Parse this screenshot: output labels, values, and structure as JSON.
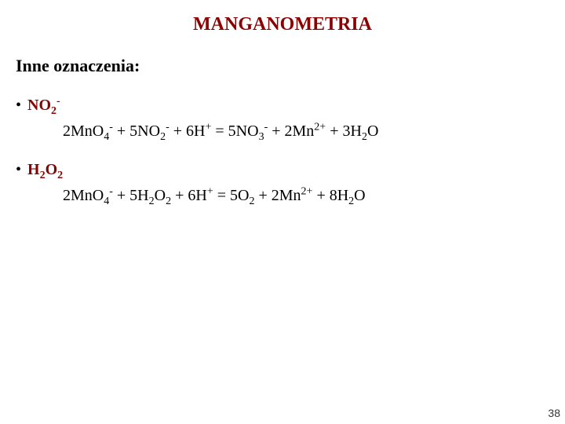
{
  "title": {
    "text": "MANGANOMETRIA",
    "color": "#8B0000",
    "fontsize": 24
  },
  "subtitle": {
    "text": "Inne oznaczenia:",
    "fontsize": 22
  },
  "items": [
    {
      "label_html": "NO<sub>2</sub><sup>-</sup>",
      "color": "#8B0000",
      "equation_html": "2MnO<sub>4</sub><sup>-</sup> + 5NO<sub>2</sub><sup>-</sup> + 6H<sup>+</sup> = 5NO<sub>3</sub><sup>-</sup> + 2Mn<sup>2+</sup> + 3H<sub>2</sub>O"
    },
    {
      "label_html": "H<sub>2</sub>O<sub>2</sub>",
      "color": "#8B0000",
      "equation_html": "2MnO<sub>4</sub><sup>-</sup> + 5H<sub>2</sub>O<sub>2</sub> + 6H<sup>+</sup> = 5O<sub>2</sub> + 2Mn<sup>2+</sup> + 8H<sub>2</sub>O"
    }
  ],
  "page_number": "38",
  "colors": {
    "background": "#ffffff",
    "text": "#000000",
    "accent": "#8B0000"
  }
}
